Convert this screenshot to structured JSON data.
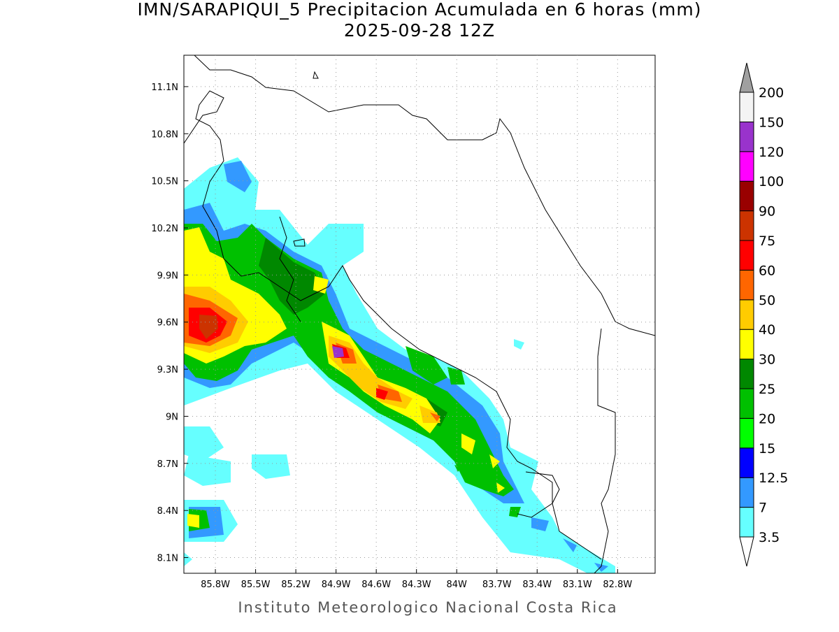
{
  "title": "IMN/SARAPIQUI_5 Precipitacion Acumulada en 6 horas (mm)",
  "subtitle": "2025-09-28 12Z",
  "footer": "Instituto Meteorologico Nacional Costa Rica",
  "map": {
    "lonlim": [
      -86.035,
      -82.52
    ],
    "latlim": [
      8.0,
      11.3
    ],
    "lon_ticks": [
      {
        "value": -85.8,
        "label": "85.8W"
      },
      {
        "value": -85.5,
        "label": "85.5W"
      },
      {
        "value": -85.2,
        "label": "85.2W"
      },
      {
        "value": -84.9,
        "label": "84.9W"
      },
      {
        "value": -84.6,
        "label": "84.6W"
      },
      {
        "value": -84.3,
        "label": "84.3W"
      },
      {
        "value": -84.0,
        "label": "84W"
      },
      {
        "value": -83.7,
        "label": "83.7W"
      },
      {
        "value": -83.4,
        "label": "83.4W"
      },
      {
        "value": -83.1,
        "label": "83.1W"
      },
      {
        "value": -82.8,
        "label": "82.8W"
      }
    ],
    "lat_ticks": [
      {
        "value": 8.1,
        "label": "8.1N"
      },
      {
        "value": 8.4,
        "label": "8.4N"
      },
      {
        "value": 8.7,
        "label": "8.7N"
      },
      {
        "value": 9.0,
        "label": "9N"
      },
      {
        "value": 9.3,
        "label": "9.3N"
      },
      {
        "value": 9.6,
        "label": "9.6N"
      },
      {
        "value": 9.9,
        "label": "9.9N"
      },
      {
        "value": 10.2,
        "label": "10.2N"
      },
      {
        "value": 10.5,
        "label": "10.5N"
      },
      {
        "value": 10.8,
        "label": "10.8N"
      },
      {
        "value": 11.1,
        "label": "11.1N"
      }
    ],
    "grid": true
  },
  "colorbar": {
    "levels": [
      3.5,
      7,
      12.5,
      15,
      20,
      25,
      30,
      40,
      50,
      60,
      75,
      90,
      100,
      120,
      150,
      200
    ],
    "colors": [
      "#66ffff",
      "#3399ff",
      "#0000ff",
      "#00ff00",
      "#00c000",
      "#008800",
      "#ffff00",
      "#ffcc00",
      "#ff6600",
      "#ff0000",
      "#cc3300",
      "#990000",
      "#ff00ff",
      "#9933cc",
      "#f4f4f4"
    ],
    "over_color": "#a0a0a0",
    "under_color": "#ffffff"
  }
}
